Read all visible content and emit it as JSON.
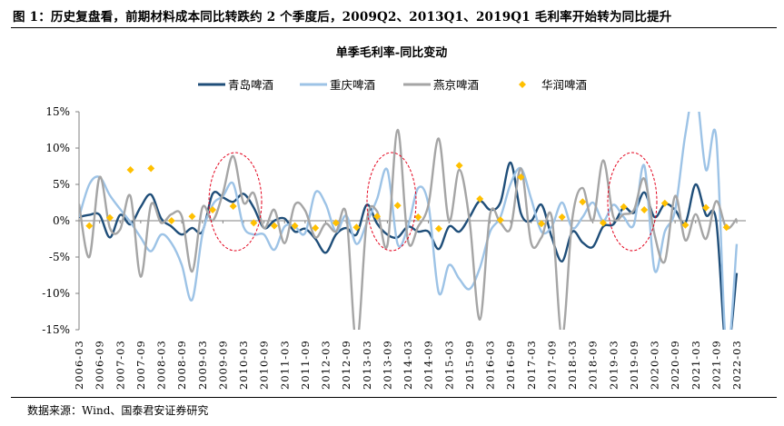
{
  "figure_title": "图 1：历史复盘看，前期材料成本同比转跌约 2 个季度后，2009Q2、2013Q1、2019Q1 毛利率开始转为同比提升",
  "source": "数据来源：Wind、国泰君安证券研究",
  "chart_data": {
    "type": "line",
    "title": "单季毛利率-同比变动",
    "xlabel": "",
    "ylabel": "",
    "ylim": [
      -15,
      15
    ],
    "yticks": [
      15,
      10,
      5,
      0,
      -5,
      -10,
      -15
    ],
    "ytick_labels": [
      "15%",
      "10%",
      "5%",
      "0%",
      "-5%",
      "-10%",
      "-15%"
    ],
    "x_tick_labels": [
      "2006-03",
      "2006-09",
      "2007-03",
      "2007-09",
      "2008-03",
      "2008-09",
      "2009-03",
      "2009-09",
      "2010-03",
      "2010-09",
      "2011-03",
      "2011-09",
      "2012-03",
      "2012-09",
      "2013-03",
      "2013-09",
      "2014-03",
      "2014-09",
      "2015-03",
      "2015-09",
      "2016-03",
      "2016-09",
      "2017-03",
      "2017-09",
      "2018-03",
      "2018-09",
      "2019-03",
      "2019-09",
      "2020-03",
      "2020-09",
      "2021-03",
      "2021-09",
      "2022-03"
    ],
    "x_range": [
      "2006-03",
      "2022-03"
    ],
    "x_frequency": "quarterly",
    "legend_placement": "top",
    "grid": false,
    "annotations": [
      "dashed red ellipse around 2009Q2-2010Q1",
      "dashed red ellipse around 2013Q1-2013Q4",
      "dashed red ellipse around 2019Q1-2019Q4"
    ],
    "series": [
      {
        "name": "青岛啤酒",
        "style": "line",
        "color": "#1f4e79",
        "values": [
          0.5,
          0.8,
          0.8,
          -2.3,
          0.8,
          -0.5,
          1.9,
          3.6,
          0.3,
          -0.8,
          -1.9,
          -1.0,
          -1.5,
          3.7,
          3.2,
          2.6,
          3.7,
          1.8,
          -1.0,
          0.0,
          0.3,
          -1.5,
          -1.1,
          -2.5,
          -4.4,
          -1.9,
          -1.0,
          -1.9,
          2.2,
          -0.4,
          -1.9,
          -2.3,
          -0.8,
          -1.5,
          -1.5,
          -3.9,
          -0.8,
          -1.5,
          0.5,
          2.7,
          1.5,
          2.5,
          8.0,
          1.0,
          0.0,
          2.2,
          -2.3,
          -5.6,
          -1.5,
          -3.0,
          -3.6,
          -0.8,
          -0.5,
          1.8,
          1.1,
          3.9,
          0.5,
          2.3,
          1.5,
          -0.3,
          5.0,
          0.8,
          0.0,
          -18.0,
          -7.2
        ]
      },
      {
        "name": "重庆啤酒",
        "style": "line",
        "color": "#9dc3e6",
        "values": [
          0.5,
          5.0,
          6.0,
          3.5,
          1.6,
          -0.2,
          -2.3,
          -4.2,
          -1.9,
          -3.1,
          -6.1,
          -10.9,
          -1.9,
          2.2,
          3.4,
          5.1,
          -0.8,
          -1.9,
          -1.9,
          -4.0,
          -0.8,
          -0.8,
          -1.7,
          3.9,
          2.3,
          -1.5,
          0.7,
          -3.2,
          -0.3,
          3.0,
          7.0,
          -3.2,
          -0.8,
          4.5,
          2.2,
          -9.9,
          -6.1,
          -8.0,
          -9.4,
          -6.5,
          -1.5,
          0.5,
          5.1,
          7.2,
          3.0,
          -1.5,
          -0.8,
          2.5,
          -1.0,
          0.5,
          2.5,
          0.0,
          2.2,
          0.5,
          -0.5,
          7.6,
          -6.8,
          -1.5,
          1.4,
          11.9,
          18.0,
          7.0,
          11.5,
          -18.0,
          -3.2
        ]
      },
      {
        "name": "燕京啤酒",
        "style": "line",
        "color": "#a5a5a5",
        "values": [
          2.3,
          -5.0,
          6.0,
          -1.0,
          -1.2,
          3.4,
          -7.7,
          2.2,
          -0.3,
          0.9,
          0.6,
          -7.0,
          1.8,
          0.0,
          3.8,
          8.9,
          2.5,
          3.8,
          -1.0,
          1.5,
          -3.1,
          2.2,
          1.4,
          -2.3,
          -0.4,
          -1.5,
          0.9,
          -17.0,
          0.0,
          1.3,
          -3.4,
          12.5,
          -2.7,
          -0.8,
          2.2,
          11.3,
          0.0,
          7.0,
          0.0,
          -13.6,
          0.9,
          -0.3,
          -1.0,
          7.2,
          -3.1,
          -2.3,
          0.5,
          -16.0,
          0.3,
          4.5,
          0.0,
          8.3,
          0.5,
          0.9,
          1.5,
          5.8,
          -1.9,
          -5.6,
          3.4,
          -2.7,
          0.9,
          -2.5,
          2.7,
          -1.0,
          0.3
        ]
      },
      {
        "name": "华润啤酒",
        "style": "scatter",
        "marker": "diamond",
        "color": "#ffc000",
        "values": [
          null,
          -0.7,
          null,
          0.4,
          null,
          7.0,
          null,
          7.2,
          null,
          0.0,
          null,
          0.6,
          null,
          1.5,
          null,
          2.0,
          null,
          -0.3,
          null,
          -0.7,
          null,
          -0.7,
          null,
          -1.0,
          null,
          -0.3,
          null,
          -0.9,
          null,
          0.6,
          null,
          2.1,
          null,
          0.5,
          null,
          -1.1,
          null,
          7.6,
          null,
          3.0,
          null,
          0.1,
          null,
          6.0,
          null,
          -0.4,
          null,
          0.5,
          null,
          2.6,
          null,
          -0.3,
          null,
          1.9,
          null,
          1.5,
          null,
          2.4,
          null,
          -0.6,
          null,
          1.8,
          null,
          -0.9,
          null
        ]
      }
    ]
  }
}
